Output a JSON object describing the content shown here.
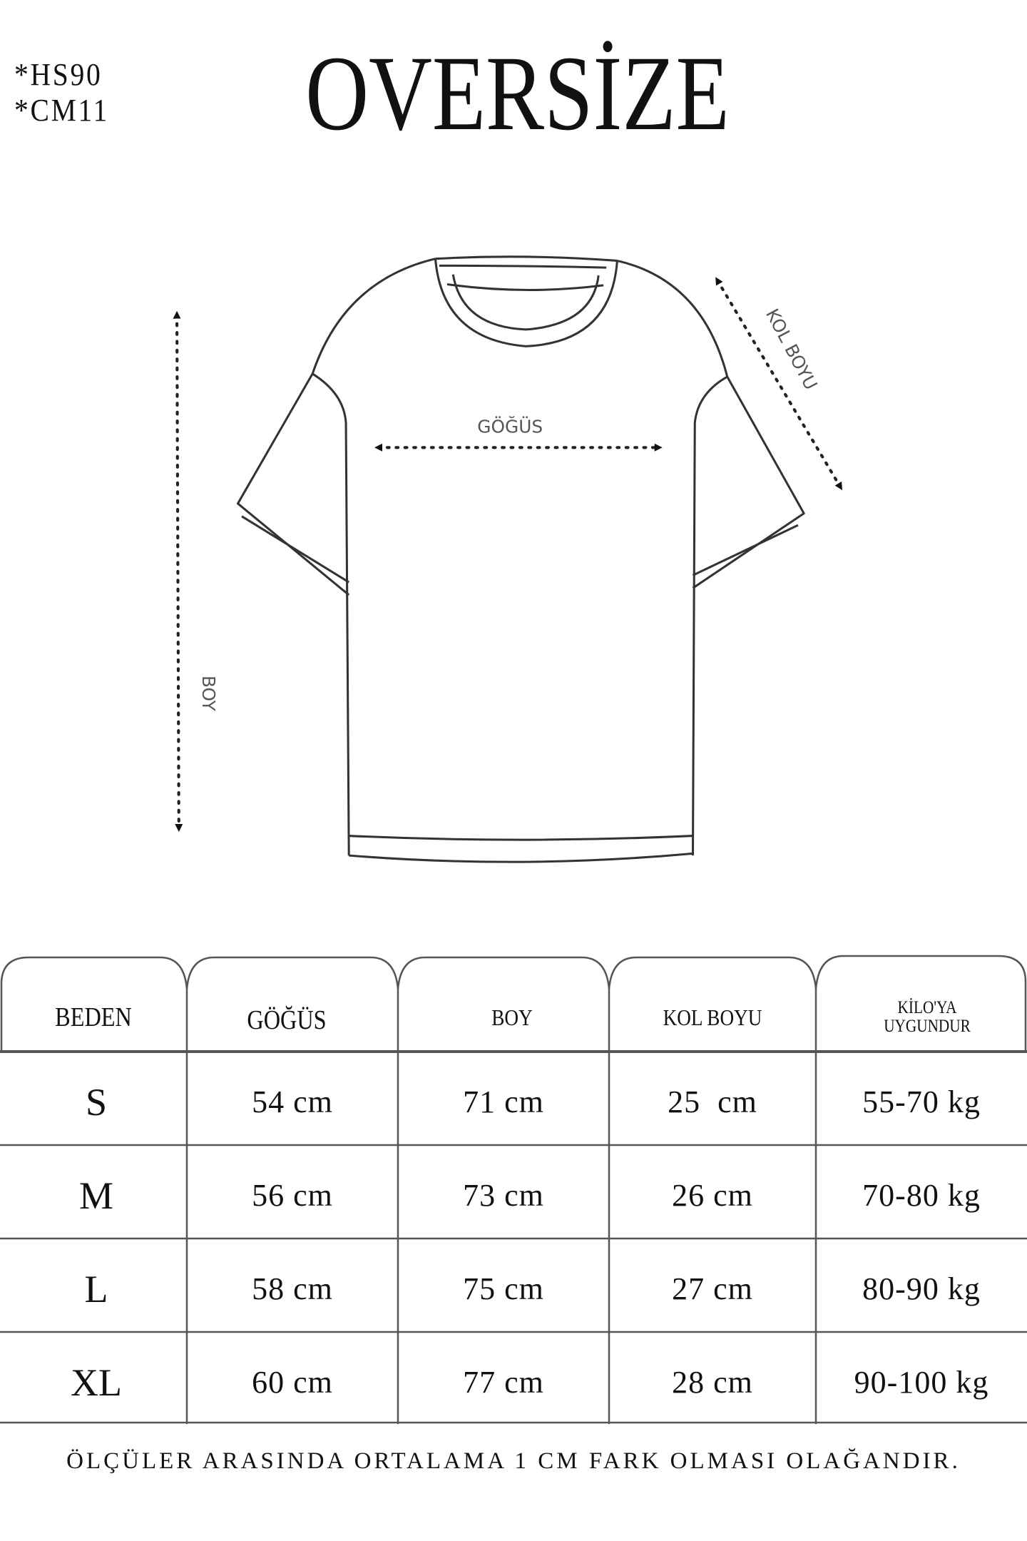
{
  "codes": [
    "*HS90",
    "*CM11"
  ],
  "title": "OVERSİZE",
  "diagram": {
    "chest_label": "GÖĞÜS",
    "length_label": "BOY",
    "sleeve_label": "KOL BOYU"
  },
  "table": {
    "headers": [
      "BEDEN",
      "GÖĞÜS",
      "BOY",
      "KOL BOYU",
      "KİLO'YA UYGUNDUR"
    ],
    "rows": [
      [
        "S",
        "54 cm",
        "71 cm",
        "25  cm",
        "55-70 kg"
      ],
      [
        "M",
        "56 cm",
        "73 cm",
        "26 cm",
        "70-80 kg"
      ],
      [
        "L",
        "58 cm",
        "75 cm",
        "27 cm",
        "80-90 kg"
      ],
      [
        "XL",
        "60 cm",
        "77 cm",
        "28 cm",
        "90-100 kg"
      ]
    ]
  },
  "footer": "ÖLÇÜLER ARASINDA ORTALAMA 1 CM FARK OLMASI OLAĞANDIR."
}
